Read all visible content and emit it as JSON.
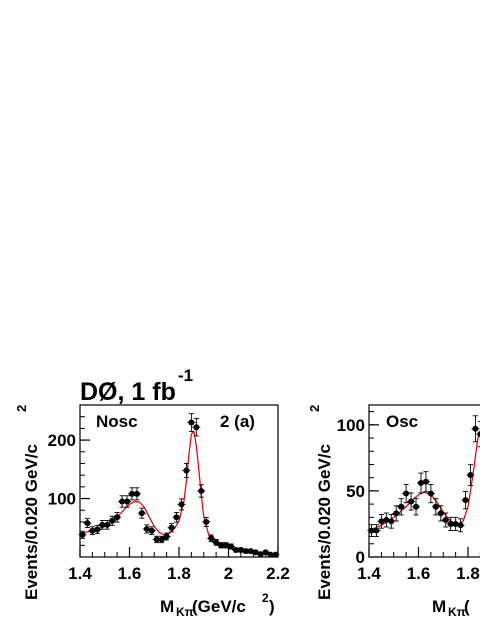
{
  "header": {
    "experiment": "DØ, 1 fb",
    "superscript": "-1"
  },
  "chart_data": [
    {
      "type": "scatter",
      "panel_label": "Nosc",
      "panel_tag": "2 (a)",
      "ylabel": "Events/0.020 GeV/c",
      "ylabel_sup": "2",
      "xlabel": "M",
      "xlabel_sub": "Kπ",
      "xlabel_unit": " (GeV/c",
      "xlabel_unit_sup": "2",
      "xlabel_close": ")",
      "xlim": [
        1.4,
        2.2
      ],
      "ylim": [
        0,
        260
      ],
      "xticks": [
        "1.4",
        "1.6",
        "1.8",
        "2",
        "2.2"
      ],
      "yticks": [
        "100",
        "200"
      ],
      "x": [
        1.41,
        1.43,
        1.45,
        1.47,
        1.49,
        1.51,
        1.53,
        1.55,
        1.57,
        1.59,
        1.61,
        1.63,
        1.65,
        1.67,
        1.69,
        1.71,
        1.73,
        1.75,
        1.77,
        1.79,
        1.81,
        1.83,
        1.85,
        1.87,
        1.89,
        1.91,
        1.93,
        1.95,
        1.97,
        1.99,
        2.01,
        2.03,
        2.05,
        2.07,
        2.09,
        2.11,
        2.13,
        2.15,
        2.17,
        2.19
      ],
      "y": [
        38,
        58,
        45,
        47,
        55,
        55,
        62,
        68,
        95,
        95,
        108,
        108,
        75,
        48,
        45,
        30,
        30,
        35,
        50,
        68,
        90,
        148,
        230,
        222,
        113,
        60,
        32,
        25,
        20,
        20,
        18,
        12,
        12,
        10,
        10,
        8,
        5,
        8,
        4,
        4
      ],
      "fit": [
        {
          "name": "fit",
          "x": [
            1.4,
            1.45,
            1.5,
            1.55,
            1.58,
            1.6,
            1.62,
            1.64,
            1.66,
            1.68,
            1.7,
            1.72,
            1.74,
            1.76,
            1.78,
            1.8,
            1.82,
            1.83,
            1.84,
            1.85,
            1.86,
            1.87,
            1.88,
            1.89,
            1.9,
            1.92,
            1.94,
            1.96,
            2.0,
            2.05,
            2.1,
            2.15,
            2.2
          ],
          "y": [
            40,
            45,
            52,
            68,
            82,
            90,
            95,
            94,
            85,
            68,
            52,
            42,
            38,
            40,
            48,
            62,
            95,
            130,
            175,
            210,
            215,
            190,
            150,
            105,
            70,
            38,
            26,
            20,
            15,
            11,
            8,
            6,
            5
          ]
        }
      ]
    },
    {
      "type": "scatter",
      "panel_label": "Osc",
      "ylabel": "Events/0.020 GeV/c",
      "ylabel_sup": "2",
      "xlabel": "M",
      "xlabel_sub": "Kπ",
      "xlabel_unit": " (",
      "xlim": [
        1.4,
        2.2
      ],
      "ylim": [
        0,
        115
      ],
      "xticks": [
        "1.4",
        "1.6",
        "1.8"
      ],
      "yticks": [
        "0",
        "50",
        "100"
      ],
      "x": [
        1.41,
        1.43,
        1.45,
        1.47,
        1.49,
        1.51,
        1.53,
        1.55,
        1.57,
        1.59,
        1.61,
        1.63,
        1.65,
        1.67,
        1.69,
        1.71,
        1.73,
        1.75,
        1.77,
        1.79,
        1.81,
        1.83,
        1.85
      ],
      "y": [
        20,
        20,
        27,
        28,
        27,
        33,
        38,
        48,
        42,
        38,
        56,
        57,
        48,
        38,
        33,
        28,
        25,
        25,
        24,
        43,
        62,
        97,
        93
      ],
      "fit": [
        {
          "name": "fit",
          "x": [
            1.4,
            1.45,
            1.5,
            1.55,
            1.58,
            1.6,
            1.62,
            1.64,
            1.66,
            1.68,
            1.7,
            1.72,
            1.74,
            1.76,
            1.78,
            1.8,
            1.82,
            1.84,
            1.86
          ],
          "y": [
            20,
            24,
            30,
            38,
            44,
            47,
            49,
            48,
            45,
            40,
            34,
            29,
            26,
            25,
            27,
            38,
            62,
            90,
            100
          ]
        }
      ]
    }
  ],
  "colors": {
    "fit": "#e00000",
    "points": "#000000",
    "axes": "#000000"
  }
}
